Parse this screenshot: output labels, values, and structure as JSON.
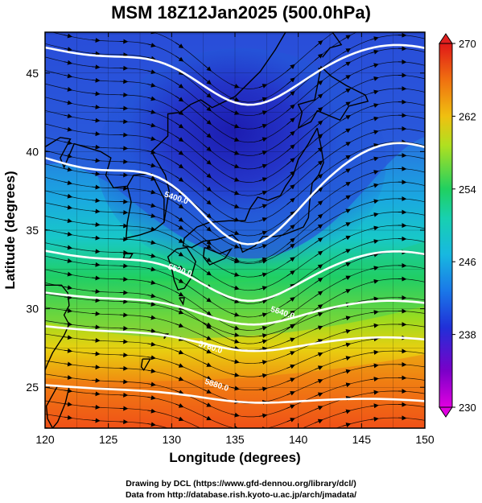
{
  "title": "MSM 18Z12Jan2025 (500.0hPa)",
  "x_axis": {
    "label": "Longitude (degrees)",
    "range": [
      120,
      150
    ],
    "ticks": [
      "120",
      "125",
      "130",
      "135",
      "140",
      "145",
      "150"
    ]
  },
  "y_axis": {
    "label": "Latitude  (degrees)",
    "range": [
      22.4,
      47.6
    ],
    "ticks": [
      "25",
      "30",
      "35",
      "40",
      "45"
    ]
  },
  "colorbar": {
    "range": [
      230,
      270
    ],
    "ticks": [
      "230",
      "238",
      "246",
      "254",
      "262",
      "270"
    ],
    "colors": [
      "#e000e0",
      "#6a00c8",
      "#2030d8",
      "#1a78e8",
      "#19c8d8",
      "#20d060",
      "#b0e020",
      "#f0c010",
      "#f07010",
      "#e01818"
    ]
  },
  "contour_labels": [
    {
      "text": "5400.0",
      "lat": 36.9,
      "lon": 130.3
    },
    {
      "text": "5520.0",
      "lat": 32.3,
      "lon": 130.6
    },
    {
      "text": "5640.0",
      "lat": 29.6,
      "lon": 138.7
    },
    {
      "text": "5760.0",
      "lat": 27.4,
      "lon": 133.0
    },
    {
      "text": "5880.0",
      "lat": 25.0,
      "lon": 133.5
    }
  ],
  "credits": {
    "line1": "Drawing by DCL (https://www.gfd-dennou.org/library/dcl/)",
    "line2": "Data from http://database.rish.kyoto-u.ac.jp/arch/jmadata/"
  }
}
